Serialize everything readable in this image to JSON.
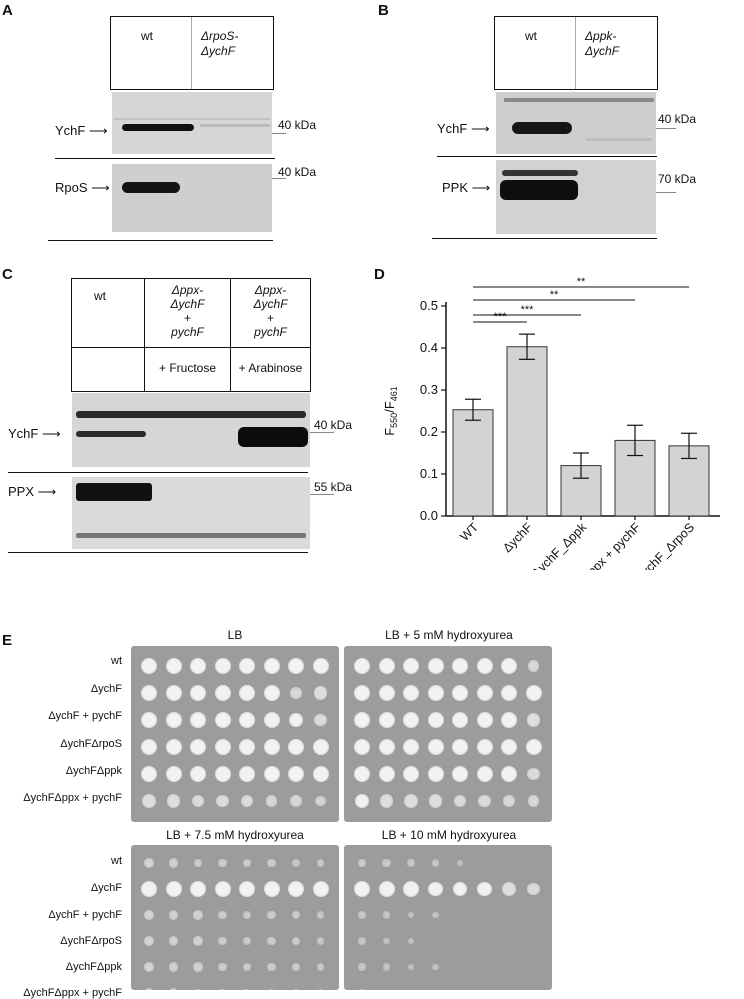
{
  "panels": {
    "A": {
      "label": "A",
      "lanes": [
        "wt",
        "ΔrpoS-ΔychF"
      ],
      "lane_italic_note": "rpoS ychF",
      "blots": [
        {
          "protein": "YchF",
          "marker": "40 kDa"
        },
        {
          "protein": "RpoS",
          "marker": "40 kDa"
        }
      ]
    },
    "B": {
      "label": "B",
      "lanes": [
        "wt",
        "Δppk-ΔychF"
      ],
      "blots": [
        {
          "protein": "YchF",
          "marker": "40 kDa"
        },
        {
          "protein": "PPK",
          "marker": "70 kDa"
        }
      ]
    },
    "C": {
      "label": "C",
      "lanes": [
        "wt",
        "Δppx-ΔychF + pychF",
        "Δppx-ΔychF + pychF"
      ],
      "lane_line1": [
        "wt",
        "Δppx-",
        "Δppx-"
      ],
      "lane_line2": [
        "",
        "ΔychF",
        "ΔychF"
      ],
      "lane_line3": [
        "",
        "+",
        "+"
      ],
      "lane_line4": [
        "",
        "pychF",
        "pychF"
      ],
      "treatments": [
        "",
        "+ Fructose",
        "+ Arabinose"
      ],
      "blots": [
        {
          "protein": "YchF",
          "marker": "40 kDa"
        },
        {
          "protein": "PPX",
          "marker": "55 kDa"
        }
      ]
    },
    "D": {
      "label": "D",
      "significance": [
        "***",
        "***",
        "**",
        "**"
      ]
    },
    "E": {
      "label": "E",
      "conditions": [
        "LB",
        "LB + 5 mM hydroxyurea",
        "LB + 7.5 mM hydroxyurea",
        "LB + 10 mM hydroxyurea"
      ],
      "strains": [
        "wt",
        "ΔychF",
        "ΔychF + pychF",
        "ΔychFΔrpoS",
        "ΔychFΔppk",
        "ΔychFΔppx + pychF"
      ]
    }
  },
  "chart_data": {
    "type": "bar",
    "categories": [
      "WT",
      "ΔychF",
      "ΔychF_Δppk",
      "ΔychF_Δppx + pychF",
      "ΔychF_ΔrpoS"
    ],
    "values": [
      0.253,
      0.403,
      0.12,
      0.18,
      0.167
    ],
    "errors": [
      0.025,
      0.03,
      0.03,
      0.036,
      0.03
    ],
    "ylabel": "F550/F461",
    "ylim": [
      0,
      0.5
    ],
    "yticks": [
      "0.0",
      "0.1",
      "0.2",
      "0.3",
      "0.4",
      "0.5"
    ],
    "bar_color": "#d3d3d3",
    "grid": false
  }
}
